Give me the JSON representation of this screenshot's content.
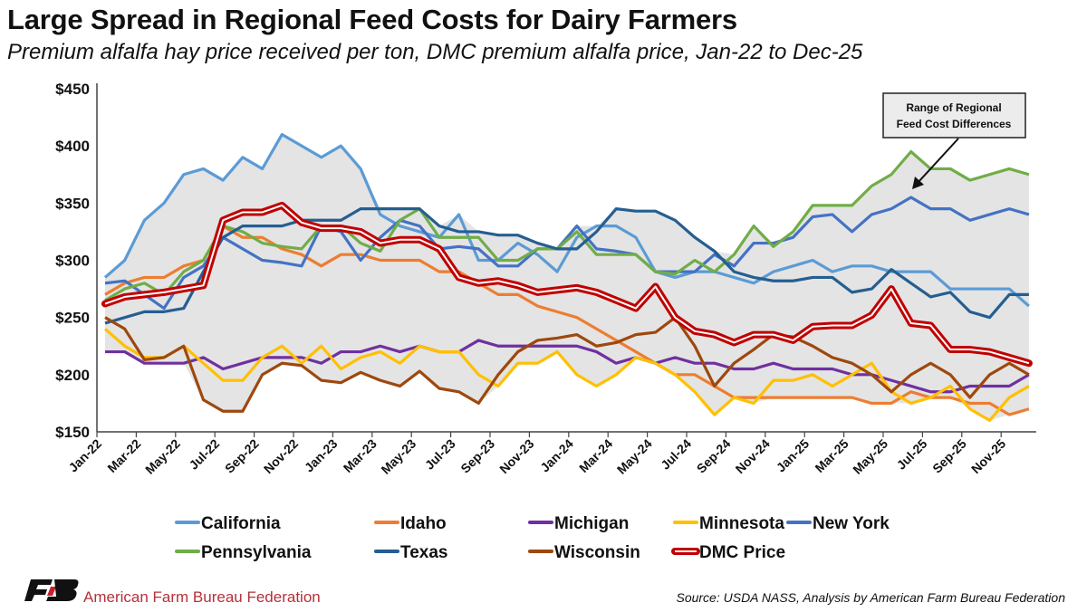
{
  "title": "Large Spread in Regional Feed Costs for Dairy Farmers",
  "subtitle": "Premium alfalfa hay price received per ton, DMC premium alfalfa price, Jan-22 to Dec-25",
  "source": "Source: USDA NASS, Analysis by American Farm Bureau Federation",
  "logo": {
    "text": "American Farm Bureau Federation",
    "mark": "FB"
  },
  "chart_data": {
    "type": "line",
    "title": "Large Spread in Regional Feed Costs for Dairy Farmers",
    "xlabel": "",
    "ylabel": "",
    "ylim": [
      150,
      450
    ],
    "yticks": [
      "$150",
      "$200",
      "$250",
      "$300",
      "$350",
      "$400",
      "$450"
    ],
    "ytick_values": [
      150,
      200,
      250,
      300,
      350,
      400,
      450
    ],
    "xtick_labels": [
      "Jan-22",
      "Mar-22",
      "May-22",
      "Jul-22",
      "Sep-22",
      "Nov-22",
      "Jan-23",
      "Mar-23",
      "May-23",
      "Jul-23",
      "Sep-23",
      "Nov-23",
      "Jan-24",
      "Mar-24",
      "May-24",
      "Jul-24",
      "Sep-24",
      "Nov-24",
      "Jan-25",
      "Mar-25",
      "May-25",
      "Jul-25",
      "Sep-25",
      "Nov-25"
    ],
    "x_start": "Jan-22",
    "x_end": "Dec-25",
    "grid": false,
    "legend_placement": "bottom",
    "shaded_range": true,
    "shaded_color": "#e4e4e4",
    "annotation": {
      "text_line1": "Range of Regional",
      "text_line2": "Feed Cost Differences"
    },
    "series": [
      {
        "name": "California",
        "color": "#5b9bd5",
        "values": [
          285,
          300,
          335,
          350,
          375,
          380,
          370,
          390,
          380,
          410,
          400,
          390,
          400,
          380,
          340,
          330,
          325,
          320,
          340,
          300,
          300,
          315,
          305,
          290,
          320,
          330,
          330,
          320,
          290,
          285,
          290,
          290,
          285,
          280,
          290,
          295,
          300,
          290,
          295,
          295,
          290,
          290,
          290,
          275,
          275,
          275,
          275,
          260
        ]
      },
      {
        "name": "Idaho",
        "color": "#ed7d31",
        "values": [
          270,
          280,
          285,
          285,
          295,
          300,
          330,
          320,
          320,
          310,
          305,
          295,
          305,
          305,
          300,
          300,
          300,
          290,
          290,
          280,
          270,
          270,
          260,
          255,
          250,
          240,
          230,
          220,
          210,
          200,
          200,
          190,
          180,
          180,
          180,
          180,
          180,
          180,
          180,
          175,
          175,
          185,
          180,
          180,
          175,
          175,
          165,
          170
        ]
      },
      {
        "name": "Michigan",
        "color": "#7030a0",
        "values": [
          220,
          220,
          210,
          210,
          210,
          215,
          205,
          210,
          215,
          215,
          215,
          210,
          220,
          220,
          225,
          220,
          225,
          220,
          220,
          230,
          225,
          225,
          225,
          225,
          225,
          220,
          210,
          215,
          210,
          215,
          210,
          210,
          205,
          205,
          210,
          205,
          205,
          205,
          200,
          200,
          195,
          190,
          185,
          185,
          190,
          190,
          190,
          200
        ]
      },
      {
        "name": "Minnesota",
        "color": "#ffc000",
        "values": [
          240,
          225,
          215,
          215,
          225,
          210,
          195,
          195,
          215,
          225,
          210,
          225,
          205,
          215,
          220,
          210,
          225,
          220,
          220,
          200,
          190,
          210,
          210,
          220,
          200,
          190,
          200,
          215,
          210,
          200,
          185,
          165,
          180,
          175,
          195,
          195,
          200,
          190,
          200,
          210,
          185,
          175,
          180,
          190,
          170,
          160,
          180,
          190
        ]
      },
      {
        "name": "New York",
        "color": "#4472c4",
        "values": [
          280,
          282,
          270,
          258,
          285,
          295,
          320,
          310,
          300,
          298,
          295,
          330,
          325,
          300,
          320,
          335,
          330,
          310,
          312,
          310,
          295,
          295,
          310,
          310,
          330,
          310,
          308,
          305,
          290,
          290,
          290,
          305,
          295,
          315,
          315,
          320,
          338,
          340,
          325,
          340,
          345,
          355,
          345,
          345,
          335,
          340,
          345,
          340
        ]
      },
      {
        "name": "Pennsylvania",
        "color": "#70ad47",
        "values": [
          265,
          275,
          280,
          270,
          290,
          300,
          330,
          325,
          315,
          312,
          310,
          330,
          330,
          315,
          308,
          335,
          345,
          320,
          320,
          320,
          300,
          300,
          310,
          310,
          325,
          305,
          305,
          305,
          290,
          288,
          300,
          290,
          305,
          330,
          312,
          325,
          348,
          348,
          348,
          365,
          375,
          395,
          380,
          380,
          370,
          375,
          380,
          375
        ]
      },
      {
        "name": "Texas",
        "color": "#255e91",
        "values": [
          245,
          250,
          255,
          255,
          258,
          290,
          320,
          330,
          330,
          330,
          335,
          335,
          335,
          345,
          345,
          345,
          345,
          330,
          325,
          325,
          322,
          322,
          315,
          310,
          310,
          325,
          345,
          343,
          343,
          335,
          320,
          308,
          290,
          285,
          282,
          282,
          285,
          285,
          272,
          275,
          292,
          280,
          268,
          272,
          255,
          250,
          270,
          270
        ]
      },
      {
        "name": "Wisconsin",
        "color": "#9e480e",
        "values": [
          250,
          240,
          213,
          215,
          225,
          178,
          168,
          168,
          200,
          210,
          208,
          195,
          193,
          202,
          195,
          190,
          203,
          188,
          185,
          175,
          200,
          220,
          230,
          232,
          235,
          225,
          228,
          235,
          237,
          250,
          225,
          190,
          210,
          222,
          235,
          233,
          225,
          215,
          210,
          200,
          185,
          200,
          210,
          200,
          180,
          200,
          210,
          200
        ]
      },
      {
        "name": "DMC Price",
        "color": "#c00000",
        "values": [
          262,
          268,
          270,
          272,
          275,
          278,
          335,
          342,
          342,
          348,
          333,
          328,
          328,
          325,
          315,
          318,
          318,
          310,
          285,
          280,
          282,
          278,
          272,
          274,
          276,
          272,
          265,
          258,
          277,
          250,
          238,
          235,
          228,
          235,
          235,
          230,
          242,
          243,
          243,
          252,
          275,
          245,
          243,
          222,
          222,
          220,
          215,
          210
        ]
      }
    ]
  }
}
